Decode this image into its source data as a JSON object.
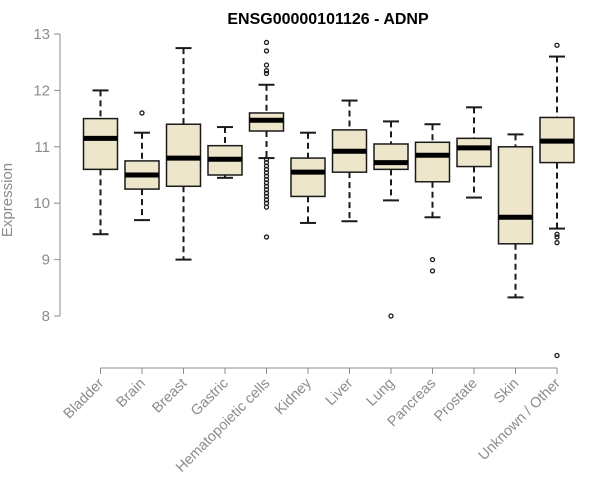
{
  "colors": {
    "box_fill": "#ede6cb",
    "box_stroke": "#1a1a1a",
    "median": "#000000",
    "axis": "#8c8c8c",
    "text": "#8c8c8c",
    "title": "#000000"
  },
  "chart_data": {
    "type": "box",
    "title": "ENSG00000101126 - ADNP",
    "xlabel": "",
    "ylabel": "Expression",
    "ylim": [
      7.0,
      13.0
    ],
    "yticks": [
      8,
      9,
      10,
      11,
      12,
      13
    ],
    "grid": false,
    "legend": "none",
    "categories": [
      "Bladder",
      "Brain",
      "Breast",
      "Gastric",
      "Hematopoietic cells",
      "Kidney",
      "Liver",
      "Lung",
      "Pancreas",
      "Prostate",
      "Skin",
      "Unknown / Other"
    ],
    "boxes": [
      {
        "category": "Bladder",
        "whisker_low": 9.45,
        "q1": 10.6,
        "median": 11.15,
        "q3": 11.5,
        "whisker_high": 12.0,
        "outliers": []
      },
      {
        "category": "Brain",
        "whisker_low": 9.7,
        "q1": 10.25,
        "median": 10.5,
        "q3": 10.75,
        "whisker_high": 11.25,
        "outliers": [
          11.6
        ]
      },
      {
        "category": "Breast",
        "whisker_low": 9.0,
        "q1": 10.3,
        "median": 10.8,
        "q3": 11.4,
        "whisker_high": 12.75,
        "outliers": []
      },
      {
        "category": "Gastric",
        "whisker_low": 10.45,
        "q1": 10.5,
        "median": 10.78,
        "q3": 11.02,
        "whisker_high": 11.35,
        "outliers": []
      },
      {
        "category": "Hematopoietic cells",
        "whisker_low": 10.8,
        "q1": 11.28,
        "median": 11.47,
        "q3": 11.6,
        "whisker_high": 12.1,
        "outliers": [
          12.85,
          12.7,
          12.45,
          12.35,
          12.3,
          10.78,
          10.72,
          10.66,
          10.6,
          10.54,
          10.48,
          10.42,
          10.36,
          10.3,
          10.24,
          10.18,
          10.12,
          10.06,
          10.0,
          9.93,
          9.4
        ]
      },
      {
        "category": "Kidney",
        "whisker_low": 9.65,
        "q1": 10.12,
        "median": 10.55,
        "q3": 10.8,
        "whisker_high": 11.25,
        "outliers": []
      },
      {
        "category": "Liver",
        "whisker_low": 9.68,
        "q1": 10.55,
        "median": 10.92,
        "q3": 11.3,
        "whisker_high": 11.82,
        "outliers": []
      },
      {
        "category": "Lung",
        "whisker_low": 10.05,
        "q1": 10.6,
        "median": 10.72,
        "q3": 11.05,
        "whisker_high": 11.45,
        "outliers": [
          8.0
        ]
      },
      {
        "category": "Pancreas",
        "whisker_low": 9.75,
        "q1": 10.38,
        "median": 10.85,
        "q3": 11.08,
        "whisker_high": 11.4,
        "outliers": [
          9.0,
          8.8
        ]
      },
      {
        "category": "Prostate",
        "whisker_low": 10.1,
        "q1": 10.65,
        "median": 10.98,
        "q3": 11.15,
        "whisker_high": 11.7,
        "outliers": []
      },
      {
        "category": "Skin",
        "whisker_low": 8.33,
        "q1": 9.28,
        "median": 9.75,
        "q3": 11.0,
        "whisker_high": 11.22,
        "outliers": []
      },
      {
        "category": "Unknown / Other",
        "whisker_low": 9.55,
        "q1": 10.72,
        "median": 11.1,
        "q3": 11.52,
        "whisker_high": 12.6,
        "outliers": [
          12.8,
          9.45,
          9.4,
          9.3,
          7.3
        ]
      }
    ]
  }
}
